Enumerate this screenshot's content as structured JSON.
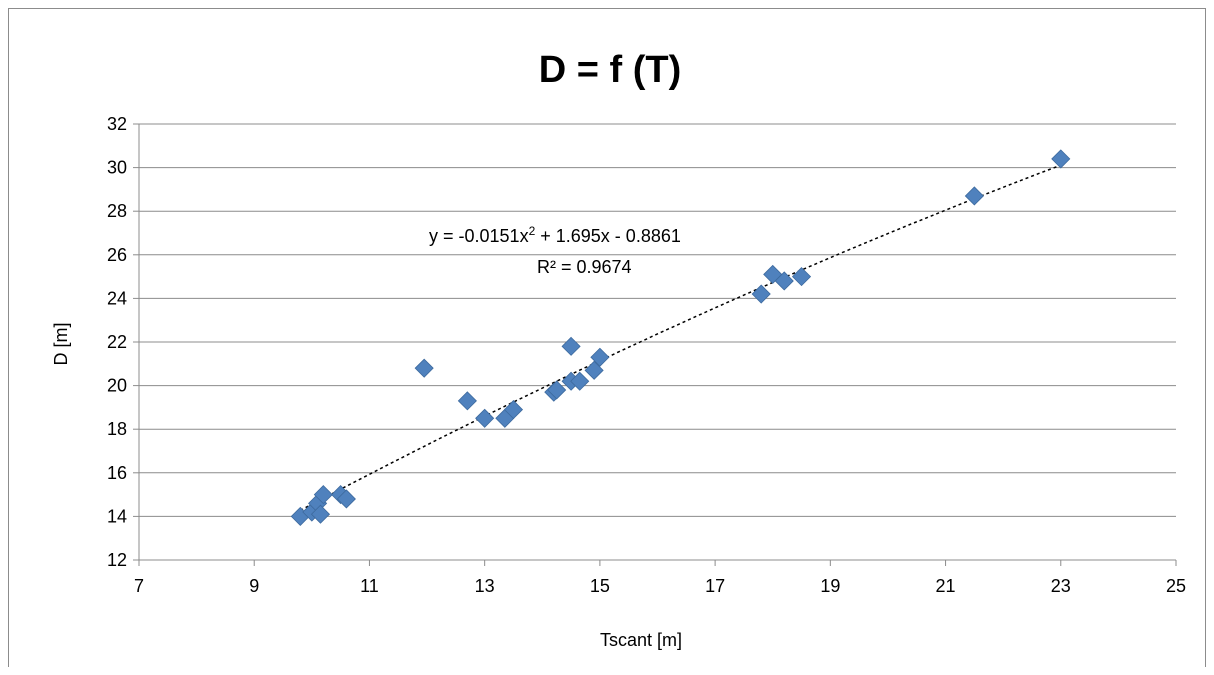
{
  "chart_data": {
    "type": "scatter",
    "title": "D = f (T)",
    "xlabel": "Tscant [m]",
    "ylabel": "D [m]",
    "xlim": [
      7,
      25
    ],
    "ylim": [
      12,
      32
    ],
    "xticks": [
      "7",
      "9",
      "11",
      "13",
      "15",
      "17",
      "19",
      "21",
      "23",
      "25"
    ],
    "yticks": [
      "12",
      "14",
      "16",
      "18",
      "20",
      "22",
      "24",
      "26",
      "28",
      "30",
      "32"
    ],
    "grid": "horizontal",
    "marker_color": "#4f81bd",
    "points": [
      {
        "x": 9.8,
        "y": 14.0
      },
      {
        "x": 10.0,
        "y": 14.2
      },
      {
        "x": 10.1,
        "y": 14.6
      },
      {
        "x": 10.15,
        "y": 14.1
      },
      {
        "x": 10.2,
        "y": 15.0
      },
      {
        "x": 10.5,
        "y": 15.0
      },
      {
        "x": 10.6,
        "y": 14.8
      },
      {
        "x": 11.95,
        "y": 20.8
      },
      {
        "x": 12.7,
        "y": 19.3
      },
      {
        "x": 13.0,
        "y": 18.5
      },
      {
        "x": 13.35,
        "y": 18.5
      },
      {
        "x": 13.5,
        "y": 18.9
      },
      {
        "x": 14.2,
        "y": 19.7
      },
      {
        "x": 14.25,
        "y": 19.8
      },
      {
        "x": 14.5,
        "y": 21.8
      },
      {
        "x": 14.5,
        "y": 20.2
      },
      {
        "x": 14.65,
        "y": 20.2
      },
      {
        "x": 14.9,
        "y": 20.7
      },
      {
        "x": 15.0,
        "y": 21.3
      },
      {
        "x": 17.8,
        "y": 24.2
      },
      {
        "x": 18.0,
        "y": 25.1
      },
      {
        "x": 18.2,
        "y": 24.8
      },
      {
        "x": 18.5,
        "y": 25.0
      },
      {
        "x": 21.5,
        "y": 28.7
      },
      {
        "x": 23.0,
        "y": 30.4
      }
    ],
    "trendline": {
      "type": "polynomial",
      "coefficients": [
        -0.0151,
        1.695,
        -0.8861
      ],
      "x_range": [
        9.8,
        23.0
      ],
      "equation_prefix": "y = -0.0151x",
      "equation_exponent": "2",
      "equation_suffix": " + 1.695x - 0.8861",
      "r_squared_label": "R² = 0.9674"
    }
  }
}
